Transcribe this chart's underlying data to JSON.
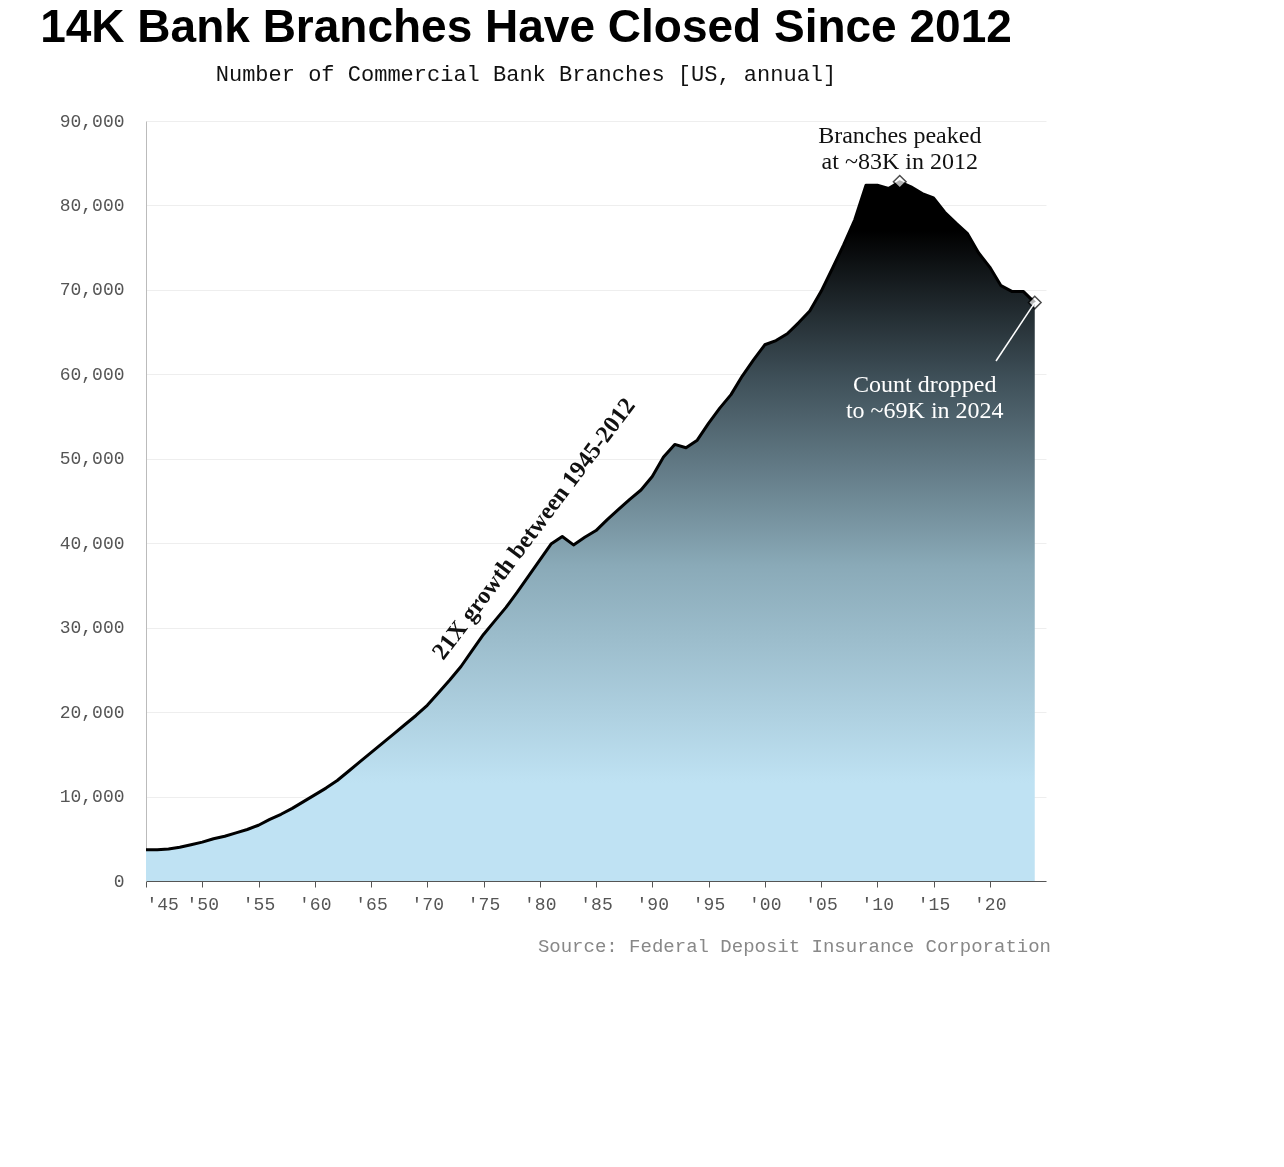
{
  "chart_data": {
    "type": "area",
    "title": "14K Bank Branches Have Closed Since 2012",
    "subtitle": "Number of Commercial Bank Branches [US, annual]",
    "x": [
      1945,
      1946,
      1947,
      1948,
      1949,
      1950,
      1951,
      1952,
      1953,
      1954,
      1955,
      1956,
      1957,
      1958,
      1959,
      1960,
      1961,
      1962,
      1963,
      1964,
      1965,
      1966,
      1967,
      1968,
      1969,
      1970,
      1971,
      1972,
      1973,
      1974,
      1975,
      1976,
      1977,
      1978,
      1979,
      1980,
      1981,
      1982,
      1983,
      1984,
      1985,
      1986,
      1987,
      1988,
      1989,
      1990,
      1991,
      1992,
      1993,
      1994,
      1995,
      1996,
      1997,
      1998,
      1999,
      2000,
      2001,
      2002,
      2003,
      2004,
      2005,
      2006,
      2007,
      2008,
      2009,
      2010,
      2011,
      2012,
      2013,
      2014,
      2015,
      2016,
      2017,
      2018,
      2019,
      2020,
      2021,
      2022,
      2023,
      2024
    ],
    "series": [
      {
        "color": "#000000",
        "values": [
          3700,
          3700,
          3800,
          4000,
          4300,
          4600,
          5000,
          5300,
          5700,
          6100,
          6600,
          7300,
          7900,
          8600,
          9400,
          10200,
          11000,
          11900,
          13000,
          14100,
          15200,
          16300,
          17400,
          18500,
          19600,
          20800,
          22300,
          23800,
          25400,
          27300,
          29200,
          30800,
          32400,
          34200,
          36100,
          38000,
          39900,
          40800,
          39800,
          40700,
          41500,
          42800,
          44000,
          45200,
          46300,
          47900,
          50200,
          51700,
          51300,
          52200,
          54200,
          56000,
          57600,
          59800,
          61700,
          63500,
          64000,
          64800,
          66100,
          67500,
          69800,
          72500,
          75300,
          78300,
          82400,
          82400,
          82000,
          82800,
          82200,
          81400,
          80900,
          79200,
          77900,
          76700,
          74400,
          72700,
          70500,
          69800,
          69800,
          68500
        ]
      }
    ],
    "xlim": [
      1945,
      2025
    ],
    "xticks": [
      {
        "value": 1945,
        "label": "'45"
      },
      {
        "value": 1950,
        "label": "'50"
      },
      {
        "value": 1955,
        "label": "'55"
      },
      {
        "value": 1960,
        "label": "'60"
      },
      {
        "value": 1965,
        "label": "'65"
      },
      {
        "value": 1970,
        "label": "'70"
      },
      {
        "value": 1975,
        "label": "'75"
      },
      {
        "value": 1980,
        "label": "'80"
      },
      {
        "value": 1985,
        "label": "'85"
      },
      {
        "value": 1990,
        "label": "'90"
      },
      {
        "value": 1995,
        "label": "'95"
      },
      {
        "value": 2000,
        "label": "'00"
      },
      {
        "value": 2005,
        "label": "'05"
      },
      {
        "value": 2010,
        "label": "'10"
      },
      {
        "value": 2015,
        "label": "'15"
      },
      {
        "value": 2020,
        "label": "'20"
      }
    ],
    "ylim": [
      0,
      90000
    ],
    "yticks": [
      {
        "value": 0,
        "label": "0"
      },
      {
        "value": 10000,
        "label": "10,000"
      },
      {
        "value": 20000,
        "label": "20,000"
      },
      {
        "value": 30000,
        "label": "30,000"
      },
      {
        "value": 40000,
        "label": "40,000"
      },
      {
        "value": 50000,
        "label": "50,000"
      },
      {
        "value": 60000,
        "label": "60,000"
      },
      {
        "value": 70000,
        "label": "70,000"
      },
      {
        "value": 80000,
        "label": "80,000"
      },
      {
        "value": 90000,
        "label": "90,000"
      }
    ],
    "grid": "y",
    "legend": false,
    "annotations": [
      {
        "text": "Branches peaked at ~83K in 2012",
        "x": 2012,
        "y": 82800
      },
      {
        "text": "Count dropped to ~69K in 2024",
        "x": 2024,
        "y": 68500
      },
      "21X growth between 1945-2012",
      "Source: Federal Deposit Insurance Corporation"
    ]
  }
}
